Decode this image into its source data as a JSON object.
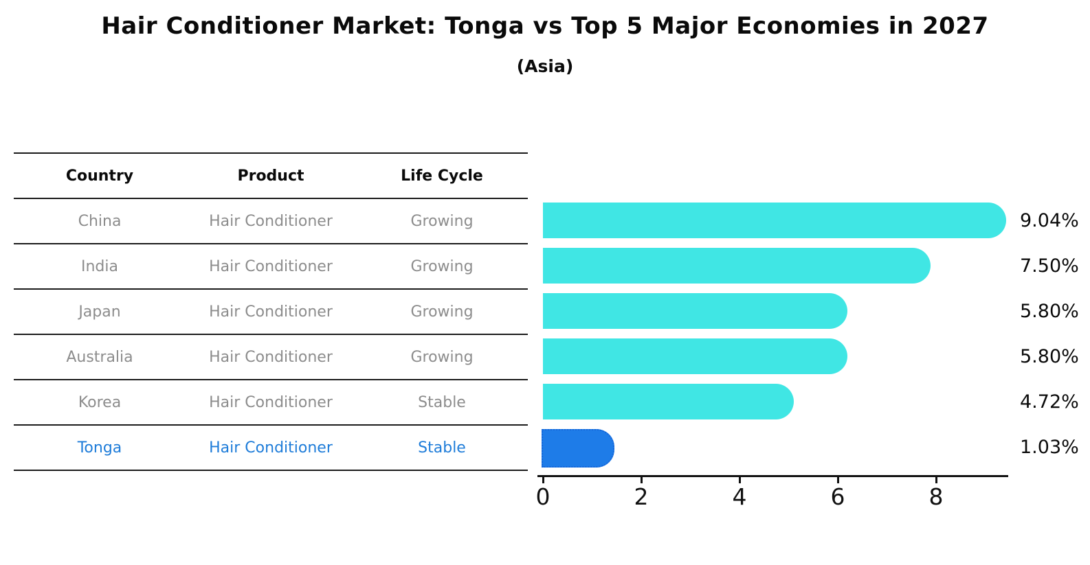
{
  "header": {
    "title": "Hair Conditioner Market: Tonga vs Top 5 Major Economies in 2027",
    "subtitle": "(Asia)"
  },
  "table": {
    "columns": [
      "Country",
      "Product",
      "Life Cycle"
    ],
    "rows": [
      {
        "country": "China",
        "product": "Hair Conditioner",
        "life_cycle": "Growing",
        "highlight": false
      },
      {
        "country": "India",
        "product": "Hair Conditioner",
        "life_cycle": "Growing",
        "highlight": false
      },
      {
        "country": "Japan",
        "product": "Hair Conditioner",
        "life_cycle": "Growing",
        "highlight": false
      },
      {
        "country": "Australia",
        "product": "Hair Conditioner",
        "life_cycle": "Growing",
        "highlight": false
      },
      {
        "country": "Korea",
        "product": "Hair Conditioner",
        "life_cycle": "Stable",
        "highlight": false
      },
      {
        "country": "Tonga",
        "product": "Hair Conditioner",
        "life_cycle": "Stable",
        "highlight": true
      }
    ]
  },
  "chart_data": {
    "type": "bar",
    "orientation": "horizontal",
    "title": "Hair Conditioner Market: Tonga vs Top 5 Major Economies in 2027",
    "subtitle": "(Asia)",
    "categories": [
      "China",
      "India",
      "Japan",
      "Australia",
      "Korea",
      "Tonga"
    ],
    "values": [
      9.04,
      7.5,
      5.8,
      5.8,
      4.72,
      1.03
    ],
    "value_labels": [
      "9.04%",
      "7.50%",
      "5.80%",
      "5.80%",
      "4.72%",
      "1.03%"
    ],
    "highlight_index": 5,
    "x_ticks": [
      "0",
      "2",
      "4",
      "6",
      "8"
    ],
    "x_tick_values": [
      0,
      2,
      4,
      6,
      8
    ],
    "xlim": [
      0,
      9.45
    ],
    "grid": false,
    "legend": "none",
    "bar_color": "#40e6e4",
    "highlight_bar_color": "#1e7ce8",
    "highlight_bar_border_color": "#1565d8",
    "highlight_text_color": "#1e7cd9",
    "text_color": "#0a0a0a",
    "muted_text_color": "#8c8c8c"
  }
}
